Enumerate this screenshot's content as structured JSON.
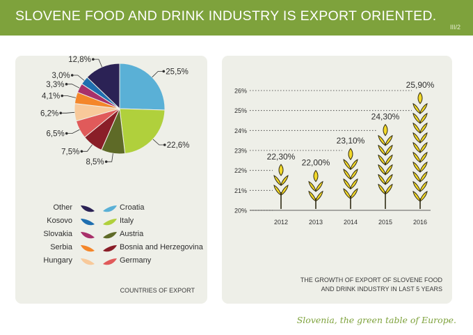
{
  "header": {
    "title": "SLOVENE FOOD AND DRINK INDUSTRY IS EXPORT ORIENTED.",
    "page": "III/2"
  },
  "pie_panel": {
    "caption": "COUNTRIES OF EXPORT"
  },
  "growth_panel": {
    "caption_lines": [
      "THE GROWTH OF EXPORT OF SLOVENE FOOD",
      "AND DRINK INDUSTRY IN LAST 5 YEARS"
    ]
  },
  "footer": {
    "tagline": "Slovenia, the green table of Europe."
  },
  "colors": {
    "header_green": "#7ea23c",
    "panel_bg": "#eeefe8",
    "wheat_fill": "#f2d829",
    "wheat_outline": "#2f2a14"
  },
  "chart_data": [
    {
      "type": "pie",
      "title": "COUNTRIES OF EXPORT",
      "slices": [
        {
          "name": "Croatia",
          "label": "25,5%",
          "value": 25.5,
          "color": "#5ab0d6"
        },
        {
          "name": "Italy",
          "label": "22,6%",
          "value": 22.6,
          "color": "#b0d03c"
        },
        {
          "name": "Austria",
          "label": "8,5%",
          "value": 8.5,
          "color": "#5e6a27"
        },
        {
          "name": "Bosnia and Herzegovina",
          "label": "7,5%",
          "value": 7.5,
          "color": "#8a1e28"
        },
        {
          "name": "Germany",
          "label": "6,5%",
          "value": 6.5,
          "color": "#e05a5a"
        },
        {
          "name": "Hungary",
          "label": "6,2%",
          "value": 6.2,
          "color": "#f8c99a"
        },
        {
          "name": "Serbia",
          "label": "4,1%",
          "value": 4.1,
          "color": "#f4862a"
        },
        {
          "name": "Slovakia",
          "label": "3,3%",
          "value": 3.3,
          "color": "#a8306a"
        },
        {
          "name": "Kosovo",
          "label": "3,0%",
          "value": 3.0,
          "color": "#1f6fb0"
        },
        {
          "name": "Other",
          "label": "12,8%",
          "value": 12.8,
          "color": "#2b2255"
        }
      ],
      "legend": {
        "left": [
          "Other",
          "Kosovo",
          "Slovakia",
          "Serbia",
          "Hungary"
        ],
        "right": [
          "Croatia",
          "Italy",
          "Austria",
          "Bosnia and Herzegovina",
          "Germany"
        ]
      }
    },
    {
      "type": "bar",
      "title": "THE GROWTH OF EXPORT OF SLOVENE FOOD AND DRINK INDUSTRY IN LAST 5 YEARS",
      "categories": [
        "2012",
        "2013",
        "2014",
        "2015",
        "2016"
      ],
      "values": [
        22.3,
        22.0,
        23.1,
        24.3,
        25.9
      ],
      "value_labels": [
        "22,30%",
        "22,00%",
        "23,10%",
        "24,30%",
        "25,90%"
      ],
      "y_ticks": [
        "20%",
        "21%",
        "22%",
        "23%",
        "24%",
        "25%",
        "26%"
      ],
      "ylim": [
        20,
        26
      ],
      "ylabel": "",
      "xlabel": "",
      "grid": "dotted"
    }
  ]
}
